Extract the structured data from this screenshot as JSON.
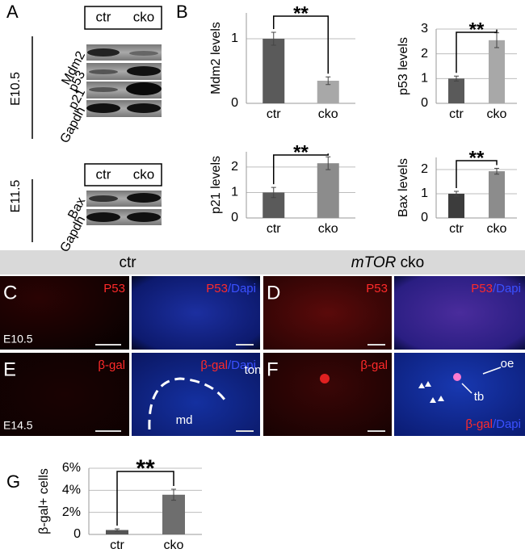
{
  "figure": {
    "panel_a": {
      "label": "A",
      "header_top": [
        "ctr",
        "cko"
      ],
      "rows_top": [
        "Mdm2",
        "p53",
        "p21",
        "Gapdh"
      ],
      "stage_top": "E10.5",
      "header_bottom": [
        "ctr",
        "cko"
      ],
      "rows_bottom": [
        "Bax",
        "Gapdh"
      ],
      "stage_bottom": "E11.5"
    },
    "panel_b_label": "B",
    "panel_g_label": "G",
    "section_header": {
      "left": "ctr",
      "right_gene": "mTOR",
      "right_label": "cko"
    },
    "tiles": [
      {
        "panel": "C",
        "stain": "P53",
        "stage": "E10.5"
      },
      {
        "stain": "P53",
        "counterstain": "/Dapi"
      },
      {
        "panel": "D",
        "stain": "P53"
      },
      {
        "stain": "P53",
        "counterstain": "/Dapi"
      },
      {
        "panel": "E",
        "stain": "β-gal",
        "stage": "E14.5"
      },
      {
        "stain": "β-gal",
        "counterstain": "/Dapi",
        "notes": [
          "ton",
          "md"
        ]
      },
      {
        "panel": "F",
        "stain": "β-gal"
      },
      {
        "stain": "β-gal",
        "counterstain": "/Dapi",
        "notes": [
          "oe",
          "tb"
        ]
      }
    ]
  },
  "chart_data": [
    {
      "type": "bar",
      "ylabel": "Mdm2 levels",
      "annotation": "**",
      "categories": [
        "ctr",
        "cko"
      ],
      "values": [
        1.0,
        0.35
      ],
      "errors": [
        0.1,
        0.06
      ],
      "colors": [
        "#5a5a5a",
        "#a8a8a8"
      ],
      "ylim": [
        0,
        1.4
      ],
      "yticks": [
        0,
        1
      ],
      "grid": true
    },
    {
      "type": "bar",
      "ylabel": "p53 levels",
      "annotation": "**",
      "categories": [
        "ctr",
        "cko"
      ],
      "values": [
        1.0,
        2.55
      ],
      "errors": [
        0.1,
        0.3
      ],
      "colors": [
        "#5a5a5a",
        "#a8a8a8"
      ],
      "ylim": [
        0,
        3
      ],
      "yticks": [
        0,
        1,
        2,
        3
      ],
      "grid": true
    },
    {
      "type": "bar",
      "ylabel": "p21 levels",
      "annotation": "**",
      "categories": [
        "ctr",
        "cko"
      ],
      "values": [
        1.0,
        2.15
      ],
      "errors": [
        0.2,
        0.25
      ],
      "colors": [
        "#5a5a5a",
        "#8c8c8c"
      ],
      "ylim": [
        0,
        2.6
      ],
      "yticks": [
        0,
        1,
        2
      ],
      "grid": true
    },
    {
      "type": "bar",
      "ylabel": "Bax levels",
      "annotation": "**",
      "categories": [
        "ctr",
        "cko"
      ],
      "values": [
        1.0,
        1.93
      ],
      "errors": [
        0.1,
        0.12
      ],
      "colors": [
        "#3c3c3c",
        "#8c8c8c"
      ],
      "ylim": [
        0,
        2.5
      ],
      "yticks": [
        0,
        1,
        2
      ],
      "grid": true
    },
    {
      "type": "bar",
      "ylabel": "β-gal+ cells",
      "annotation": "**",
      "categories": [
        "ctr",
        "cko"
      ],
      "values": [
        0.4,
        3.6
      ],
      "errors": [
        0.1,
        0.5
      ],
      "colors": [
        "#555555",
        "#6e6e6e"
      ],
      "ylim": [
        0,
        6
      ],
      "yticks": [
        0,
        {
          "value": 2,
          "label": "2%"
        },
        {
          "value": 4,
          "label": "4%"
        },
        {
          "value": 6,
          "label": "6%"
        }
      ],
      "grid": true
    }
  ]
}
